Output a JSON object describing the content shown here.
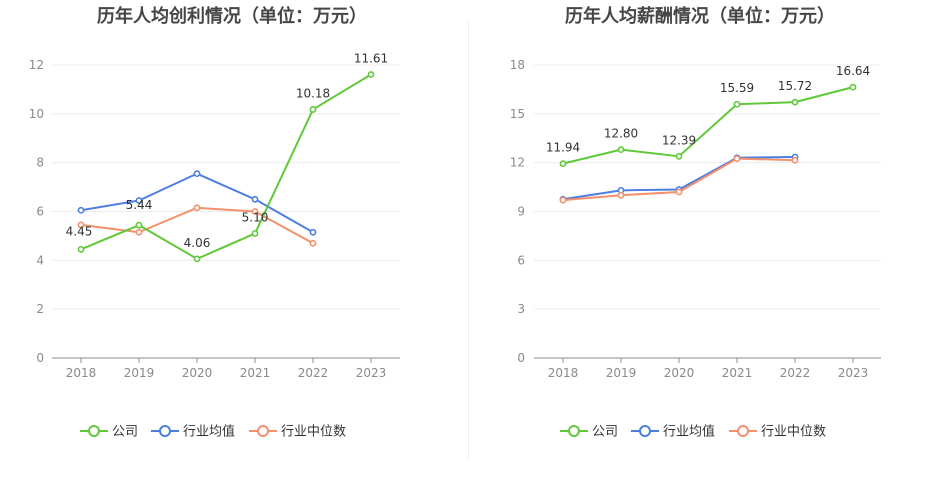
{
  "chart_data": [
    {
      "type": "line",
      "title": "历年人均创利情况（单位：万元）",
      "categories": [
        "2018",
        "2019",
        "2020",
        "2021",
        "2022",
        "2023"
      ],
      "ylim": [
        0,
        12
      ],
      "yticks": [
        0,
        2,
        4,
        6,
        8,
        10,
        12
      ],
      "grid": true,
      "legend_position": "bottom",
      "series": [
        {
          "name": "公司",
          "color": "#5fc93a",
          "values": [
            4.45,
            5.44,
            4.06,
            5.1,
            10.18,
            11.61
          ],
          "labels": [
            "4.45",
            "5.44",
            "4.06",
            "5.10",
            "10.18",
            "11.61"
          ]
        },
        {
          "name": "行业均值",
          "color": "#4c7fe0",
          "values": [
            6.05,
            6.45,
            7.55,
            6.5,
            5.15,
            null
          ]
        },
        {
          "name": "行业中位数",
          "color": "#f4906b",
          "values": [
            5.45,
            5.15,
            6.15,
            6.0,
            4.7,
            null
          ]
        }
      ]
    },
    {
      "type": "line",
      "title": "历年人均薪酬情况（单位：万元）",
      "categories": [
        "2018",
        "2019",
        "2020",
        "2021",
        "2022",
        "2023"
      ],
      "ylim": [
        0,
        18
      ],
      "yticks": [
        0,
        3,
        6,
        9,
        12,
        15,
        18
      ],
      "grid": true,
      "legend_position": "bottom",
      "series": [
        {
          "name": "公司",
          "color": "#5fc93a",
          "values": [
            11.94,
            12.8,
            12.39,
            15.59,
            15.72,
            16.64
          ],
          "labels": [
            "11.94",
            "12.80",
            "12.39",
            "15.59",
            "15.72",
            "16.64"
          ]
        },
        {
          "name": "行业均值",
          "color": "#4c7fe0",
          "values": [
            9.75,
            10.3,
            10.35,
            12.3,
            12.35,
            null
          ]
        },
        {
          "name": "行业中位数",
          "color": "#f4906b",
          "values": [
            9.7,
            10.0,
            10.2,
            12.25,
            12.15,
            null
          ]
        }
      ]
    }
  ]
}
